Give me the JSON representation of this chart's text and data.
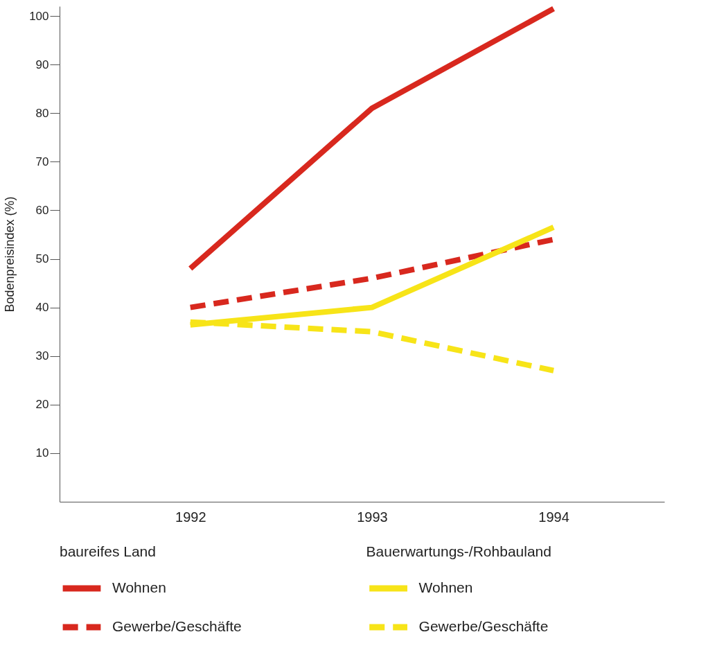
{
  "chart_data": {
    "type": "line",
    "ylabel": "Bodenpreisindex (%)",
    "x": [
      1992,
      1993,
      1994
    ],
    "xlim": [
      1991.28,
      1994.61
    ],
    "xticks": [
      1992,
      1993,
      1994
    ],
    "ylim": [
      0,
      102
    ],
    "yticks": [
      10,
      20,
      30,
      40,
      50,
      60,
      70,
      80,
      90,
      100
    ],
    "grid": false,
    "legend": "bottom",
    "marker": "none",
    "annotations": [
      "baureifes Land",
      "Bauerwartungs-/Rohbauland"
    ],
    "series": [
      {
        "name": "Wohnen",
        "color": "#d8281e",
        "line_style": "solid",
        "values": [
          48,
          81,
          101.5
        ]
      },
      {
        "name": "Gewerbe/Geschäfte",
        "color": "#d8281e",
        "line_style": "dashed",
        "values": [
          40,
          46,
          54
        ]
      },
      {
        "name": "Wohnen",
        "color": "#f7e418",
        "line_style": "solid",
        "values": [
          36.4,
          40,
          56.5
        ]
      },
      {
        "name": "Gewerbe/Geschäfte",
        "color": "#f7e418",
        "line_style": "dashed",
        "values": [
          37,
          35,
          27
        ]
      }
    ]
  }
}
